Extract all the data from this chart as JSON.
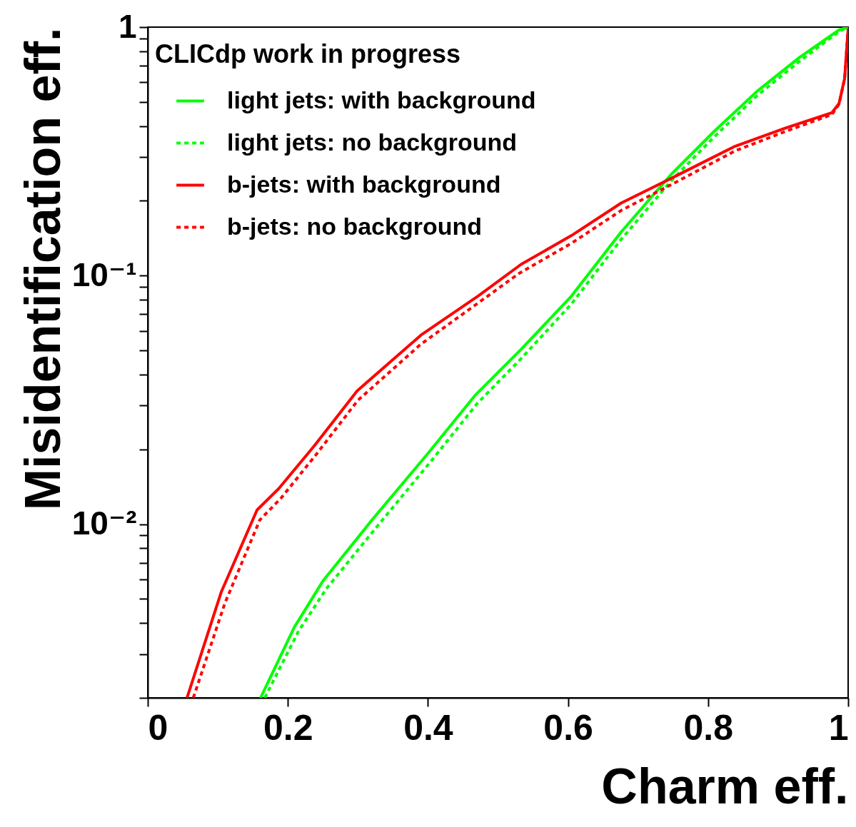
{
  "chart_data": {
    "type": "line",
    "xlabel": "Charm eff.",
    "ylabel": "Misidentification eff.",
    "annotations": [
      "CLICdp work in progress"
    ],
    "log": "y",
    "grid": false,
    "legend": "top left",
    "xlim": [
      0,
      1
    ],
    "ylim": [
      0.002,
      1
    ],
    "xticks": [
      0,
      0.2,
      0.4,
      0.6,
      0.8,
      1
    ],
    "yticks": [
      {
        "value": 0.002,
        "label": null
      },
      {
        "value": 0.003,
        "label": null
      },
      {
        "value": 0.004,
        "label": null
      },
      {
        "value": 0.005,
        "label": null
      },
      {
        "value": 0.006,
        "label": null
      },
      {
        "value": 0.007,
        "label": null
      },
      {
        "value": 0.008,
        "label": null
      },
      {
        "value": 0.009,
        "label": null
      },
      {
        "value": 0.01,
        "label": "10⁻²"
      },
      {
        "value": 0.02,
        "label": null
      },
      {
        "value": 0.03,
        "label": null
      },
      {
        "value": 0.04,
        "label": null
      },
      {
        "value": 0.05,
        "label": null
      },
      {
        "value": 0.06,
        "label": null
      },
      {
        "value": 0.07,
        "label": null
      },
      {
        "value": 0.08,
        "label": null
      },
      {
        "value": 0.09,
        "label": null
      },
      {
        "value": 0.1,
        "label": "10⁻¹"
      },
      {
        "value": 0.2,
        "label": null
      },
      {
        "value": 0.3,
        "label": null
      },
      {
        "value": 0.4,
        "label": null
      },
      {
        "value": 0.5,
        "label": null
      },
      {
        "value": 0.6,
        "label": null
      },
      {
        "value": 0.7,
        "label": null
      },
      {
        "value": 0.8,
        "label": null
      },
      {
        "value": 0.9,
        "label": null
      },
      1
    ],
    "series": [
      {
        "name": "light jets: with background",
        "color": "#00ff00",
        "line_style": "solid",
        "x": [
          0.161,
          0.209,
          0.25,
          0.319,
          0.401,
          0.467,
          0.533,
          0.605,
          0.676,
          0.747,
          0.808,
          0.87,
          0.931,
          0.987,
          1.0
        ],
        "values": [
          0.002,
          0.00384,
          0.0059,
          0.0103,
          0.0194,
          0.0329,
          0.0505,
          0.0828,
          0.15,
          0.255,
          0.379,
          0.552,
          0.757,
          0.974,
          1.0
        ]
      },
      {
        "name": "light jets: no background",
        "color": "#00ff00",
        "line_style": "dotted",
        "x": [
          0.167,
          0.215,
          0.255,
          0.325,
          0.405,
          0.47,
          0.535,
          0.605,
          0.676,
          0.747,
          0.808,
          0.87,
          0.931,
          0.987,
          1.0
        ],
        "values": [
          0.002,
          0.0037,
          0.0055,
          0.0096,
          0.018,
          0.0305,
          0.047,
          0.077,
          0.14,
          0.24,
          0.36,
          0.53,
          0.73,
          0.96,
          1.0
        ]
      },
      {
        "name": "b-jets: with background",
        "color": "#ff0000",
        "line_style": "solid",
        "x": [
          0.056,
          0.105,
          0.156,
          0.187,
          0.238,
          0.299,
          0.39,
          0.472,
          0.533,
          0.605,
          0.676,
          0.747,
          0.839,
          0.91,
          0.977,
          0.987,
          0.995,
          1.0
        ],
        "values": [
          0.002,
          0.00534,
          0.0114,
          0.0139,
          0.0207,
          0.0344,
          0.0576,
          0.0829,
          0.111,
          0.145,
          0.196,
          0.246,
          0.332,
          0.392,
          0.453,
          0.493,
          0.622,
          0.987
        ]
      },
      {
        "name": "b-jets: no background",
        "color": "#ff0000",
        "line_style": "dotted",
        "x": [
          0.065,
          0.11,
          0.16,
          0.19,
          0.24,
          0.3,
          0.39,
          0.47,
          0.53,
          0.605,
          0.676,
          0.747,
          0.839,
          0.91,
          0.977,
          0.987,
          0.995,
          1.0
        ],
        "values": [
          0.002,
          0.0048,
          0.0104,
          0.0127,
          0.019,
          0.0315,
          0.053,
          0.077,
          0.102,
          0.135,
          0.183,
          0.232,
          0.318,
          0.38,
          0.445,
          0.49,
          0.62,
          0.987
        ]
      }
    ]
  }
}
